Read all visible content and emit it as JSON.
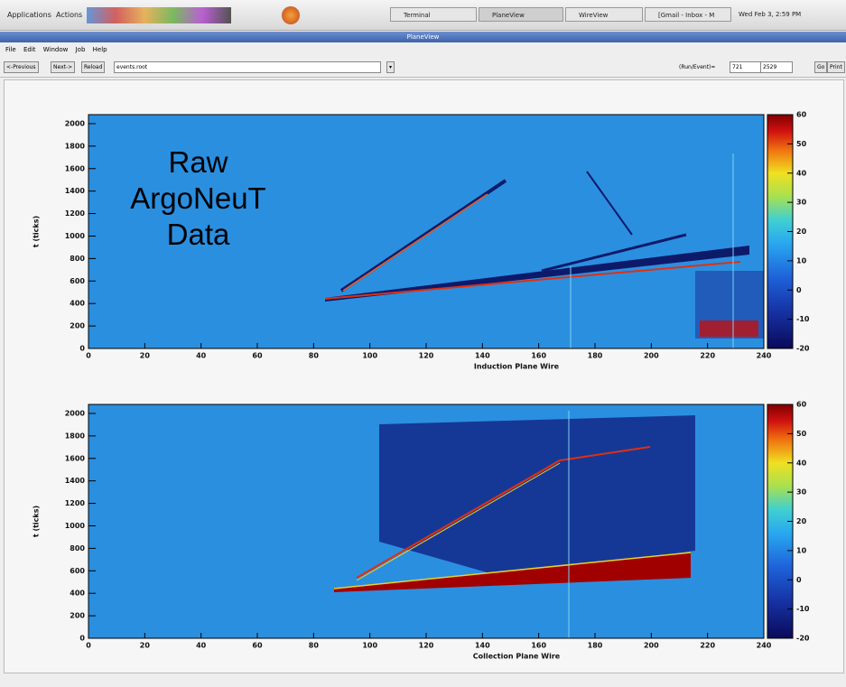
{
  "taskbar": {
    "items": [
      "Applications",
      "Actions"
    ],
    "windows": [
      "Terminal",
      "PlaneView",
      "WireView",
      "[Gmail - Inbox - M"
    ],
    "clock": "Wed Feb 3, 2:59 PM"
  },
  "window": {
    "title": "PlaneView",
    "menu": [
      "File",
      "Edit",
      "Window",
      "Job",
      "Help"
    ],
    "toolbar": {
      "buttons": [
        "<-Previous",
        "Next->",
        "Reload"
      ],
      "file": "events.root",
      "run_event_label": "(Run/Event)=",
      "run": "721",
      "event": "2529",
      "go": "Go",
      "print": "Print"
    }
  },
  "annotation": "Raw ArgoNeuT Data",
  "chart_data": [
    {
      "type": "heatmap",
      "x_label": "Induction Plane Wire",
      "y_label": "t (ticks)",
      "xlim": [
        0,
        240
      ],
      "xticks": [
        0,
        20,
        40,
        60,
        80,
        100,
        120,
        140,
        160,
        180,
        200,
        220,
        240
      ],
      "ylim": [
        0,
        2080
      ],
      "yticks": [
        0,
        200,
        400,
        600,
        800,
        1000,
        1200,
        1400,
        1600,
        1800,
        2000
      ],
      "zlim": [
        -20,
        60
      ],
      "zticks": [
        -20,
        -10,
        0,
        10,
        20,
        30,
        40,
        50,
        60
      ]
    },
    {
      "type": "heatmap",
      "x_label": "Collection Plane Wire",
      "y_label": "t (ticks)",
      "xlim": [
        0,
        240
      ],
      "xticks": [
        0,
        20,
        40,
        60,
        80,
        100,
        120,
        140,
        160,
        180,
        200,
        220,
        240
      ],
      "ylim": [
        0,
        2080
      ],
      "yticks": [
        0,
        200,
        400,
        600,
        800,
        1000,
        1200,
        1400,
        1600,
        1800,
        2000
      ],
      "zlim": [
        -20,
        60
      ],
      "zticks": [
        -20,
        -10,
        0,
        10,
        20,
        30,
        40,
        50,
        60
      ]
    }
  ]
}
